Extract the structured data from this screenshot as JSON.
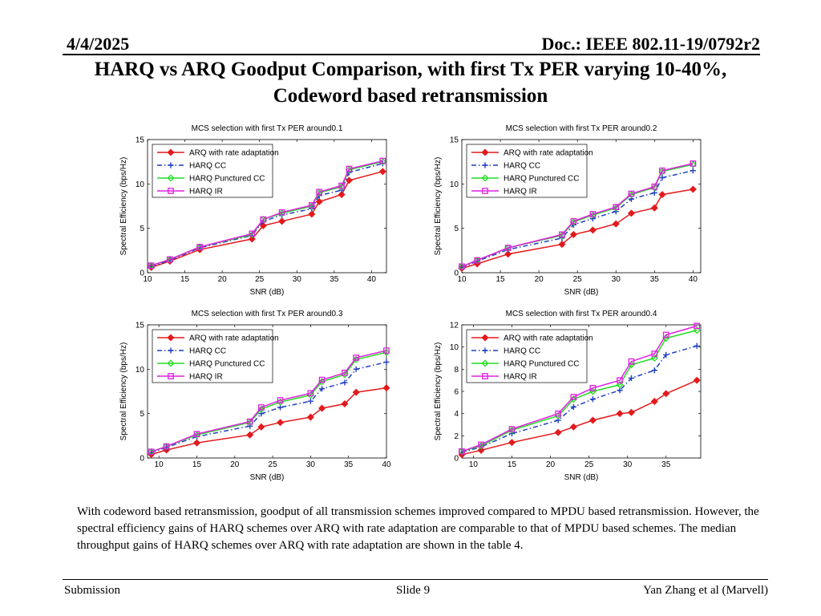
{
  "header": {
    "date": "4/4/2025",
    "doc": "Doc.: IEEE 802.11-19/0792r2"
  },
  "title_line1": "HARQ vs ARQ Goodput Comparison, with first Tx PER varying 10-40%,",
  "title_line2": "Codeword based retransmission",
  "chart_data": [
    {
      "type": "line",
      "title": "MCS selection with first Tx PER around0.1",
      "xlabel": "SNR (dB)",
      "ylabel": "Spectral Efficiency (bps/Hz)",
      "xlim": [
        10,
        42
      ],
      "ylim": [
        0,
        15
      ],
      "xticks": [
        10,
        15,
        20,
        25,
        30,
        35,
        40
      ],
      "yticks": [
        0,
        5,
        10,
        15
      ],
      "legend": "top-left",
      "series": [
        {
          "name": "ARQ with rate adaptation",
          "color": "#e31a1c",
          "marker": "diamond-filled",
          "dash": "solid",
          "points": [
            [
              10.5,
              0.6
            ],
            [
              13,
              1.3
            ],
            [
              17,
              2.6
            ],
            [
              24,
              3.8
            ],
            [
              25.5,
              5.3
            ],
            [
              28,
              5.8
            ],
            [
              32,
              6.6
            ],
            [
              33,
              8.0
            ],
            [
              36,
              8.8
            ],
            [
              37,
              10.4
            ],
            [
              41.5,
              11.4
            ]
          ]
        },
        {
          "name": "HARQ CC",
          "color": "#1f3fbf",
          "marker": "plus",
          "dash": "dashdot",
          "points": [
            [
              10.5,
              0.7
            ],
            [
              13,
              1.4
            ],
            [
              17,
              2.8
            ],
            [
              24,
              4.2
            ],
            [
              25.5,
              5.8
            ],
            [
              28,
              6.5
            ],
            [
              32,
              7.2
            ],
            [
              33,
              8.7
            ],
            [
              36,
              9.3
            ],
            [
              37,
              11.3
            ],
            [
              41.5,
              12.3
            ]
          ]
        },
        {
          "name": "HARQ Punctured CC",
          "color": "#22dd22",
          "marker": "diamond-open",
          "dash": "solid",
          "points": [
            [
              10.5,
              0.8
            ],
            [
              13,
              1.5
            ],
            [
              17,
              2.9
            ],
            [
              24,
              4.3
            ],
            [
              25.5,
              6.0
            ],
            [
              28,
              6.7
            ],
            [
              32,
              7.5
            ],
            [
              33,
              9.0
            ],
            [
              36,
              9.7
            ],
            [
              37,
              11.6
            ],
            [
              41.5,
              12.5
            ]
          ]
        },
        {
          "name": "HARQ IR",
          "color": "#e020e0",
          "marker": "square-open",
          "dash": "solid",
          "points": [
            [
              10.5,
              0.8
            ],
            [
              13,
              1.5
            ],
            [
              17,
              2.9
            ],
            [
              24,
              4.4
            ],
            [
              25.5,
              6.0
            ],
            [
              28,
              6.8
            ],
            [
              32,
              7.6
            ],
            [
              33,
              9.1
            ],
            [
              36,
              9.8
            ],
            [
              37,
              11.7
            ],
            [
              41.5,
              12.6
            ]
          ]
        }
      ]
    },
    {
      "type": "line",
      "title": "MCS selection with first Tx PER around0.2",
      "xlabel": "SNR (dB)",
      "ylabel": "Spectral Efficiency (bps/Hz)",
      "xlim": [
        10,
        41
      ],
      "ylim": [
        0,
        15
      ],
      "xticks": [
        10,
        15,
        20,
        25,
        30,
        35,
        40
      ],
      "yticks": [
        0,
        5,
        10,
        15
      ],
      "legend": "top-left",
      "series": [
        {
          "name": "ARQ with rate adaptation",
          "color": "#e31a1c",
          "marker": "diamond-filled",
          "dash": "solid",
          "points": [
            [
              10,
              0.5
            ],
            [
              12,
              1.0
            ],
            [
              16,
              2.1
            ],
            [
              23,
              3.2
            ],
            [
              24.5,
              4.3
            ],
            [
              27,
              4.8
            ],
            [
              30,
              5.5
            ],
            [
              32,
              6.7
            ],
            [
              35,
              7.3
            ],
            [
              36,
              8.8
            ],
            [
              40,
              9.4
            ]
          ]
        },
        {
          "name": "HARQ CC",
          "color": "#1f3fbf",
          "marker": "plus",
          "dash": "dashdot",
          "points": [
            [
              10,
              0.6
            ],
            [
              12,
              1.3
            ],
            [
              16,
              2.6
            ],
            [
              23,
              3.9
            ],
            [
              24.5,
              5.4
            ],
            [
              27,
              6.1
            ],
            [
              30,
              6.9
            ],
            [
              32,
              8.3
            ],
            [
              35,
              9.0
            ],
            [
              36,
              10.7
            ],
            [
              40,
              11.5
            ]
          ]
        },
        {
          "name": "HARQ Punctured CC",
          "color": "#22dd22",
          "marker": "diamond-open",
          "dash": "solid",
          "points": [
            [
              10,
              0.7
            ],
            [
              12,
              1.4
            ],
            [
              16,
              2.8
            ],
            [
              23,
              4.2
            ],
            [
              24.5,
              5.7
            ],
            [
              27,
              6.5
            ],
            [
              30,
              7.3
            ],
            [
              32,
              8.8
            ],
            [
              35,
              9.6
            ],
            [
              36,
              11.4
            ],
            [
              40,
              12.2
            ]
          ]
        },
        {
          "name": "HARQ IR",
          "color": "#e020e0",
          "marker": "square-open",
          "dash": "solid",
          "points": [
            [
              10,
              0.7
            ],
            [
              12,
              1.4
            ],
            [
              16,
              2.8
            ],
            [
              23,
              4.3
            ],
            [
              24.5,
              5.8
            ],
            [
              27,
              6.6
            ],
            [
              30,
              7.4
            ],
            [
              32,
              8.9
            ],
            [
              35,
              9.7
            ],
            [
              36,
              11.5
            ],
            [
              40,
              12.3
            ]
          ]
        }
      ]
    },
    {
      "type": "line",
      "title": "MCS selection with first Tx PER around0.3",
      "xlabel": "SNR (dB)",
      "ylabel": "Spectral Efficiency (bps/Hz)",
      "xlim": [
        8.5,
        40
      ],
      "ylim": [
        0,
        15
      ],
      "xticks": [
        10,
        15,
        20,
        25,
        30,
        35,
        40
      ],
      "yticks": [
        0,
        5,
        10,
        15
      ],
      "legend": "top-left",
      "series": [
        {
          "name": "ARQ with rate adaptation",
          "color": "#e31a1c",
          "marker": "diamond-filled",
          "dash": "solid",
          "points": [
            [
              9,
              0.4
            ],
            [
              11,
              0.9
            ],
            [
              15,
              1.7
            ],
            [
              22,
              2.6
            ],
            [
              23.5,
              3.5
            ],
            [
              26,
              4.0
            ],
            [
              30,
              4.6
            ],
            [
              31.5,
              5.6
            ],
            [
              34.5,
              6.1
            ],
            [
              36,
              7.4
            ],
            [
              40,
              7.9
            ]
          ]
        },
        {
          "name": "HARQ CC",
          "color": "#1f3fbf",
          "marker": "plus",
          "dash": "dashdot",
          "points": [
            [
              9,
              0.6
            ],
            [
              11,
              1.2
            ],
            [
              15,
              2.4
            ],
            [
              22,
              3.6
            ],
            [
              23.5,
              5.0
            ],
            [
              26,
              5.7
            ],
            [
              30,
              6.4
            ],
            [
              31.5,
              7.8
            ],
            [
              34.5,
              8.5
            ],
            [
              36,
              10.0
            ],
            [
              40,
              10.8
            ]
          ]
        },
        {
          "name": "HARQ Punctured CC",
          "color": "#22dd22",
          "marker": "diamond-open",
          "dash": "solid",
          "points": [
            [
              9,
              0.7
            ],
            [
              11,
              1.3
            ],
            [
              15,
              2.6
            ],
            [
              22,
              4.0
            ],
            [
              23.5,
              5.5
            ],
            [
              26,
              6.3
            ],
            [
              30,
              7.1
            ],
            [
              31.5,
              8.6
            ],
            [
              34.5,
              9.4
            ],
            [
              36,
              11.1
            ],
            [
              40,
              11.9
            ]
          ]
        },
        {
          "name": "HARQ IR",
          "color": "#e020e0",
          "marker": "square-open",
          "dash": "solid",
          "points": [
            [
              9,
              0.7
            ],
            [
              11,
              1.3
            ],
            [
              15,
              2.7
            ],
            [
              22,
              4.1
            ],
            [
              23.5,
              5.7
            ],
            [
              26,
              6.5
            ],
            [
              30,
              7.3
            ],
            [
              31.5,
              8.8
            ],
            [
              34.5,
              9.6
            ],
            [
              36,
              11.3
            ],
            [
              40,
              12.1
            ]
          ]
        }
      ]
    },
    {
      "type": "line",
      "title": "MCS selection with first Tx PER around0.4",
      "xlabel": "SNR (dB)",
      "ylabel": "Spectral Efficiency (bps/Hz)",
      "xlim": [
        8.5,
        39.5
      ],
      "ylim": [
        0,
        12
      ],
      "xticks": [
        10,
        15,
        20,
        25,
        30,
        35
      ],
      "yticks": [
        0,
        2,
        4,
        6,
        8,
        10,
        12
      ],
      "legend": "top-left",
      "series": [
        {
          "name": "ARQ with rate adaptation",
          "color": "#e31a1c",
          "marker": "diamond-filled",
          "dash": "solid",
          "points": [
            [
              8.5,
              0.3
            ],
            [
              11,
              0.7
            ],
            [
              15,
              1.4
            ],
            [
              21,
              2.3
            ],
            [
              23,
              2.8
            ],
            [
              25.5,
              3.4
            ],
            [
              29,
              4.0
            ],
            [
              30.5,
              4.1
            ],
            [
              33.5,
              5.1
            ],
            [
              35,
              5.8
            ],
            [
              39,
              7.0
            ]
          ]
        },
        {
          "name": "HARQ CC",
          "color": "#1f3fbf",
          "marker": "plus",
          "dash": "dashdot",
          "points": [
            [
              8.5,
              0.5
            ],
            [
              11,
              1.0
            ],
            [
              15,
              2.2
            ],
            [
              21,
              3.4
            ],
            [
              23,
              4.6
            ],
            [
              25.5,
              5.3
            ],
            [
              29,
              6.1
            ],
            [
              30.5,
              7.2
            ],
            [
              33.5,
              7.9
            ],
            [
              35,
              9.3
            ],
            [
              39,
              10.1
            ]
          ]
        },
        {
          "name": "HARQ Punctured CC",
          "color": "#22dd22",
          "marker": "diamond-open",
          "dash": "solid",
          "points": [
            [
              8.5,
              0.6
            ],
            [
              11,
              1.1
            ],
            [
              15,
              2.5
            ],
            [
              21,
              3.8
            ],
            [
              23,
              5.3
            ],
            [
              25.5,
              6.0
            ],
            [
              29,
              6.6
            ],
            [
              30.5,
              8.4
            ],
            [
              33.5,
              9.0
            ],
            [
              35,
              10.8
            ],
            [
              39,
              11.5
            ]
          ]
        },
        {
          "name": "HARQ IR",
          "color": "#e020e0",
          "marker": "square-open",
          "dash": "solid",
          "points": [
            [
              8.5,
              0.6
            ],
            [
              11,
              1.2
            ],
            [
              15,
              2.6
            ],
            [
              21,
              4.0
            ],
            [
              23,
              5.5
            ],
            [
              25.5,
              6.3
            ],
            [
              29,
              7.0
            ],
            [
              30.5,
              8.7
            ],
            [
              33.5,
              9.4
            ],
            [
              35,
              11.1
            ],
            [
              39,
              11.9
            ]
          ]
        }
      ]
    }
  ],
  "body_text": "With codeword based retransmission, goodput of all transmission schemes improved compared to MPDU based retransmission. However, the spectral efficiency gains of HARQ schemes over ARQ with rate adaptation are comparable to that of MPDU based schemes. The median throughput gains of HARQ schemes over ARQ with rate adaptation are shown in the table 4.",
  "footer": {
    "left": "Submission",
    "mid": "Slide 9",
    "right": "Yan Zhang et al (Marvell)"
  }
}
